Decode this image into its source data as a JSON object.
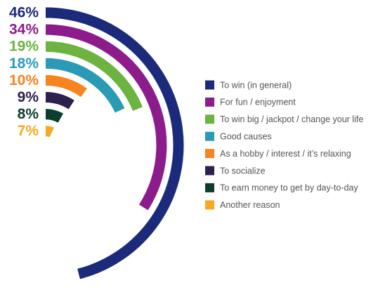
{
  "chart_data": {
    "type": "radial_bar",
    "categories": [
      "To win (in general)",
      "For fun / enjoyment",
      "To win big / jackpot / change your life",
      "Good causes",
      "As a hobby / interest / it’s relaxing",
      "To socialize",
      "To earn money to get by day-to-day",
      "Another reason"
    ],
    "values": [
      46,
      34,
      19,
      18,
      10,
      9,
      8,
      7
    ],
    "value_labels": [
      "46%",
      "34%",
      "19%",
      "18%",
      "10%",
      "9%",
      "8%",
      "7%"
    ],
    "colors": [
      "#1b2a7a",
      "#8c1c8c",
      "#6cb33f",
      "#2a9ab5",
      "#f7841f",
      "#2d1f4e",
      "#0c3d2e",
      "#f7a823"
    ],
    "xlim": [
      0,
      100
    ],
    "legend": "right"
  }
}
